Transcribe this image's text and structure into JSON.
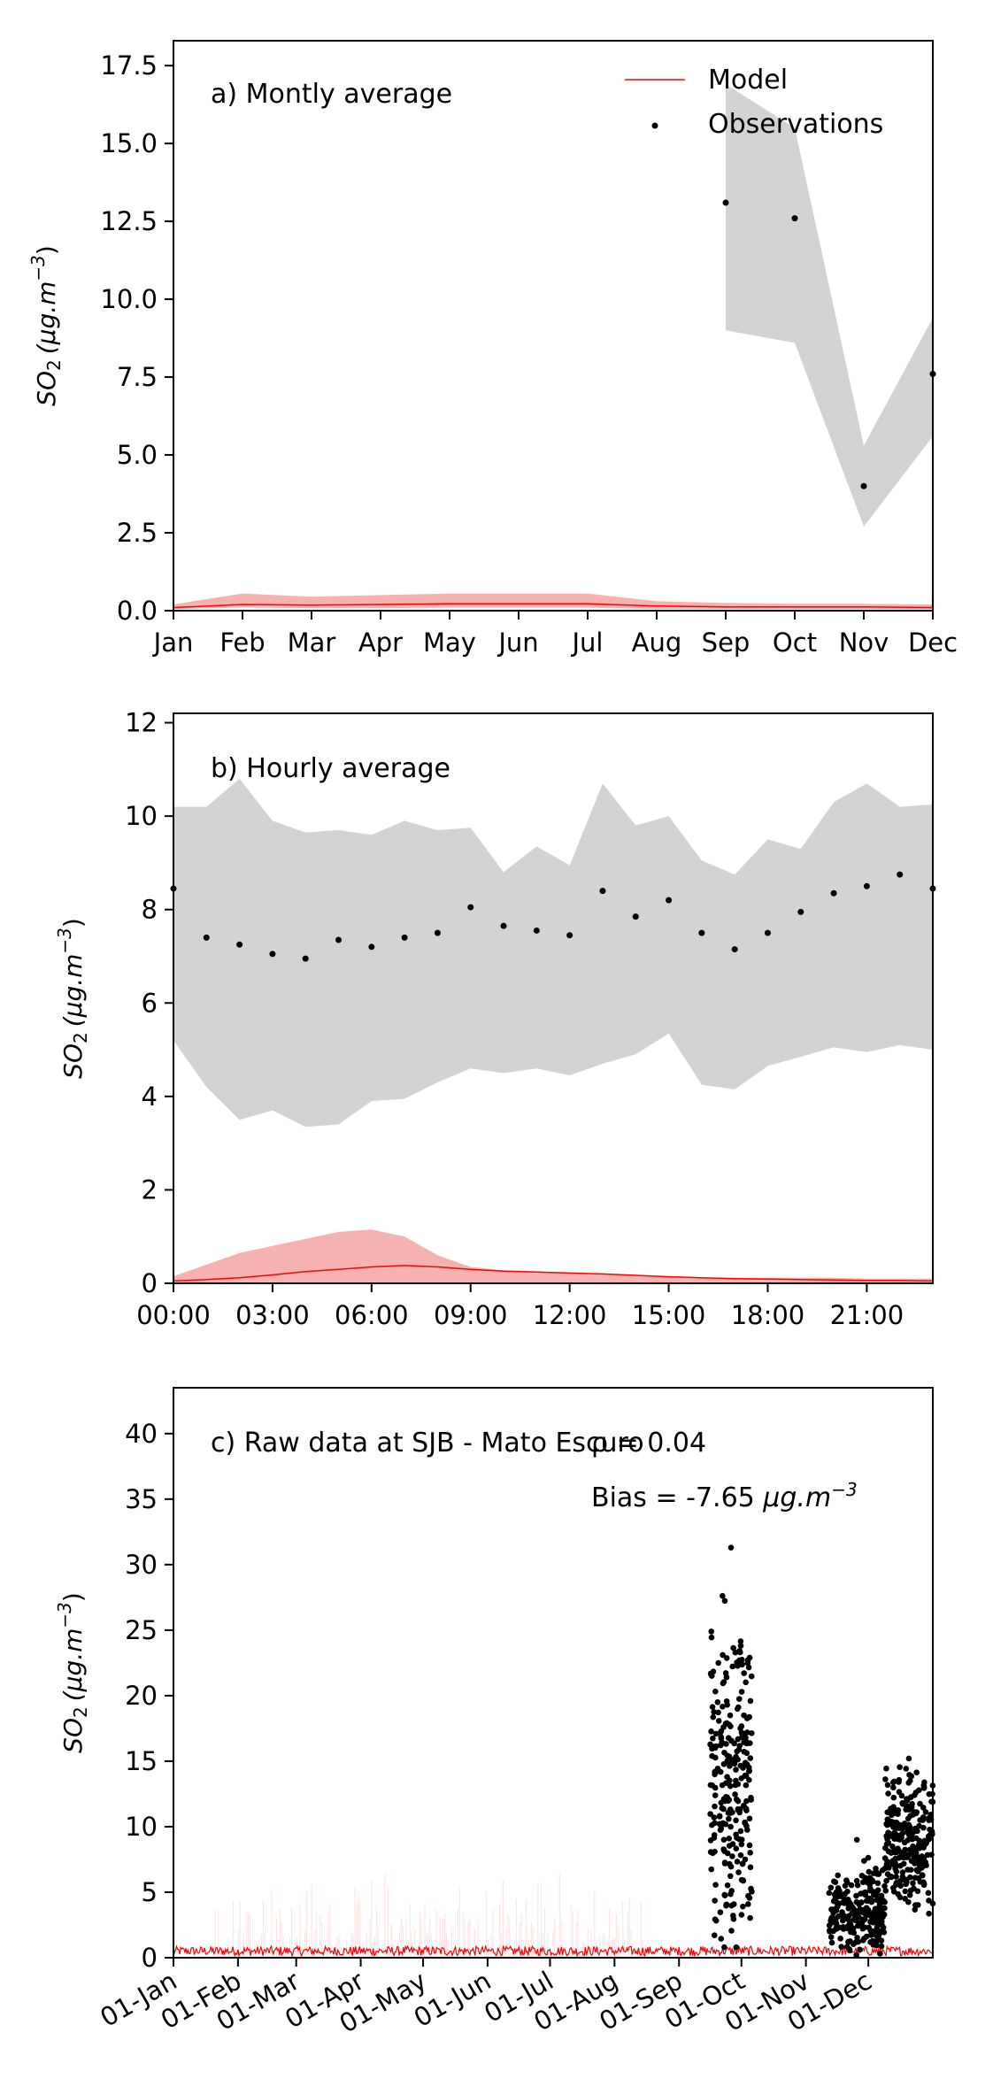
{
  "chart_data": [
    {
      "type": "line",
      "panel_label": "a) Montly average",
      "ylabel_main": "SO",
      "ylabel_sub": "2",
      "ylabel_units": "(μg.m",
      "ylabel_exp": "−3",
      "ylabel_close": ")",
      "ylim": [
        0,
        18.3
      ],
      "yticks": [
        0.0,
        2.5,
        5.0,
        7.5,
        10.0,
        12.5,
        15.0,
        17.5
      ],
      "ytick_labels": [
        "0.0",
        "2.5",
        "5.0",
        "7.5",
        "10.0",
        "12.5",
        "15.0",
        "17.5"
      ],
      "x": [
        0,
        1,
        2,
        3,
        4,
        5,
        6,
        7,
        8,
        9,
        10,
        11
      ],
      "xlim": [
        0,
        11
      ],
      "xticks": [
        0,
        1,
        2,
        3,
        4,
        5,
        6,
        7,
        8,
        9,
        10,
        11
      ],
      "xtick_labels": [
        "Jan",
        "Feb",
        "Mar",
        "Apr",
        "May",
        "Jun",
        "Jul",
        "Aug",
        "Sep",
        "Oct",
        "Nov",
        "Dec"
      ],
      "legend": {
        "placement": "top-right",
        "model_label": "Model",
        "obs_label": "Observations"
      },
      "obs_band": {
        "x": [
          8,
          9,
          10,
          11
        ],
        "low": [
          9.0,
          8.6,
          2.7,
          5.6
        ],
        "high": [
          16.9,
          15.5,
          5.3,
          9.4
        ]
      },
      "obs_points": {
        "x": [
          8,
          9,
          10,
          11
        ],
        "y": [
          13.1,
          12.6,
          4.0,
          7.6
        ]
      },
      "model_band": {
        "low": [
          0.05,
          0.1,
          0.08,
          0.08,
          0.1,
          0.1,
          0.1,
          0.05,
          0.05,
          0.05,
          0.05,
          0.05
        ],
        "high": [
          0.2,
          0.55,
          0.45,
          0.5,
          0.55,
          0.55,
          0.55,
          0.3,
          0.25,
          0.22,
          0.22,
          0.2
        ]
      },
      "model_line": [
        0.1,
        0.2,
        0.18,
        0.2,
        0.22,
        0.22,
        0.22,
        0.15,
        0.12,
        0.12,
        0.12,
        0.1
      ]
    },
    {
      "type": "line",
      "panel_label": "b) Hourly average",
      "ylabel_main": "SO",
      "ylabel_sub": "2",
      "ylabel_units": "(μg.m",
      "ylabel_exp": "−3",
      "ylabel_close": ")",
      "ylim": [
        0,
        12.2
      ],
      "yticks": [
        0,
        2,
        4,
        6,
        8,
        10,
        12
      ],
      "ytick_labels": [
        "0",
        "2",
        "4",
        "6",
        "8",
        "10",
        "12"
      ],
      "x": [
        0,
        1,
        2,
        3,
        4,
        5,
        6,
        7,
        8,
        9,
        10,
        11,
        12,
        13,
        14,
        15,
        16,
        17,
        18,
        19,
        20,
        21,
        22,
        23
      ],
      "xlim": [
        0,
        23
      ],
      "xticks": [
        0,
        3,
        6,
        9,
        12,
        15,
        18,
        21
      ],
      "xtick_labels": [
        "00:00",
        "03:00",
        "06:00",
        "09:00",
        "12:00",
        "15:00",
        "18:00",
        "21:00"
      ],
      "obs_band": {
        "x": [
          0,
          1,
          2,
          3,
          4,
          5,
          6,
          7,
          8,
          9,
          10,
          11,
          12,
          13,
          14,
          15,
          16,
          17,
          18,
          19,
          20,
          21,
          22,
          23
        ],
        "low": [
          5.2,
          4.2,
          3.5,
          3.7,
          3.35,
          3.4,
          3.9,
          3.95,
          4.3,
          4.6,
          4.5,
          4.6,
          4.45,
          4.7,
          4.9,
          5.35,
          4.25,
          4.15,
          4.65,
          4.85,
          5.05,
          4.95,
          5.1,
          5.0
        ],
        "high": [
          10.2,
          10.2,
          10.8,
          9.9,
          9.65,
          9.7,
          9.6,
          9.9,
          9.7,
          9.75,
          8.8,
          9.35,
          8.95,
          10.7,
          9.8,
          10.0,
          9.05,
          8.75,
          9.5,
          9.3,
          10.3,
          10.7,
          10.2,
          10.25
        ]
      },
      "obs_points": {
        "x": [
          0,
          1,
          2,
          3,
          4,
          5,
          6,
          7,
          8,
          9,
          10,
          11,
          12,
          13,
          14,
          15,
          16,
          17,
          18,
          19,
          20,
          21,
          22,
          23
        ],
        "y": [
          8.45,
          7.4,
          7.25,
          7.05,
          6.95,
          7.35,
          7.2,
          7.4,
          7.5,
          8.05,
          7.65,
          7.55,
          7.45,
          8.4,
          7.85,
          8.2,
          7.5,
          7.15,
          7.5,
          7.95,
          8.35,
          8.5,
          8.75,
          8.45
        ]
      },
      "model_band": {
        "low": [
          0.0,
          0.0,
          0.0,
          0.0,
          0.0,
          0.0,
          0.0,
          0.0,
          0.0,
          0.0,
          0.0,
          0.0,
          0.0,
          0.0,
          0.0,
          0.0,
          0.0,
          0.0,
          0.0,
          0.0,
          0.0,
          0.0,
          0.0,
          0.0
        ],
        "high": [
          0.15,
          0.4,
          0.65,
          0.8,
          0.95,
          1.1,
          1.15,
          1.0,
          0.6,
          0.35,
          0.28,
          0.25,
          0.22,
          0.2,
          0.18,
          0.15,
          0.12,
          0.12,
          0.12,
          0.12,
          0.12,
          0.1,
          0.1,
          0.1
        ]
      },
      "model_line": [
        0.05,
        0.08,
        0.12,
        0.18,
        0.25,
        0.3,
        0.35,
        0.38,
        0.35,
        0.3,
        0.26,
        0.24,
        0.22,
        0.2,
        0.17,
        0.14,
        0.12,
        0.1,
        0.09,
        0.08,
        0.07,
        0.06,
        0.06,
        0.05
      ]
    },
    {
      "type": "scatter",
      "panel_label": "c) Raw data at SJB - Mato Escuro",
      "rho_text": "ρ = 0.04",
      "bias_prefix": "Bias = -7.65 ",
      "bias_units": "μg.m",
      "bias_exp": "−3",
      "ylabel_main": "SO",
      "ylabel_sub": "2",
      "ylabel_units": "(μg.m",
      "ylabel_exp": "−3",
      "ylabel_close": ")",
      "ylim": [
        0,
        43.5
      ],
      "yticks": [
        0,
        5,
        10,
        15,
        20,
        25,
        30,
        35,
        40
      ],
      "ytick_labels": [
        "0",
        "5",
        "10",
        "15",
        "20",
        "25",
        "30",
        "35",
        "40"
      ],
      "xlim": [
        0,
        365
      ],
      "xticks": [
        0,
        31,
        59,
        90,
        120,
        151,
        181,
        212,
        243,
        273,
        304,
        334
      ],
      "xtick_labels": [
        "01-Jan",
        "01-Feb",
        "01-Mar",
        "01-Apr",
        "01-May",
        "01-Jun",
        "01-Jul",
        "01-Aug",
        "01-Sep",
        "01-Oct",
        "01-Nov",
        "01-Dec"
      ],
      "obs_clusters": [
        {
          "x_range": [
            258,
            278
          ],
          "y_min": 0.8,
          "y_max": 31.3,
          "center": 13.5
        },
        {
          "x_range": [
            315,
            342
          ],
          "y_min": 0.2,
          "y_max": 9.0,
          "center": 3.5
        },
        {
          "x_range": [
            342,
            365
          ],
          "y_min": 3.0,
          "y_max": 15.2,
          "center": 9.0
        }
      ],
      "model_typical_max": 1.2,
      "model_spike_max": 7.0
    }
  ],
  "colors": {
    "model": "#ff0000",
    "model_band": "#f5a3a3",
    "obs_band": "#d3d3d3",
    "obs_points": "#000000"
  }
}
